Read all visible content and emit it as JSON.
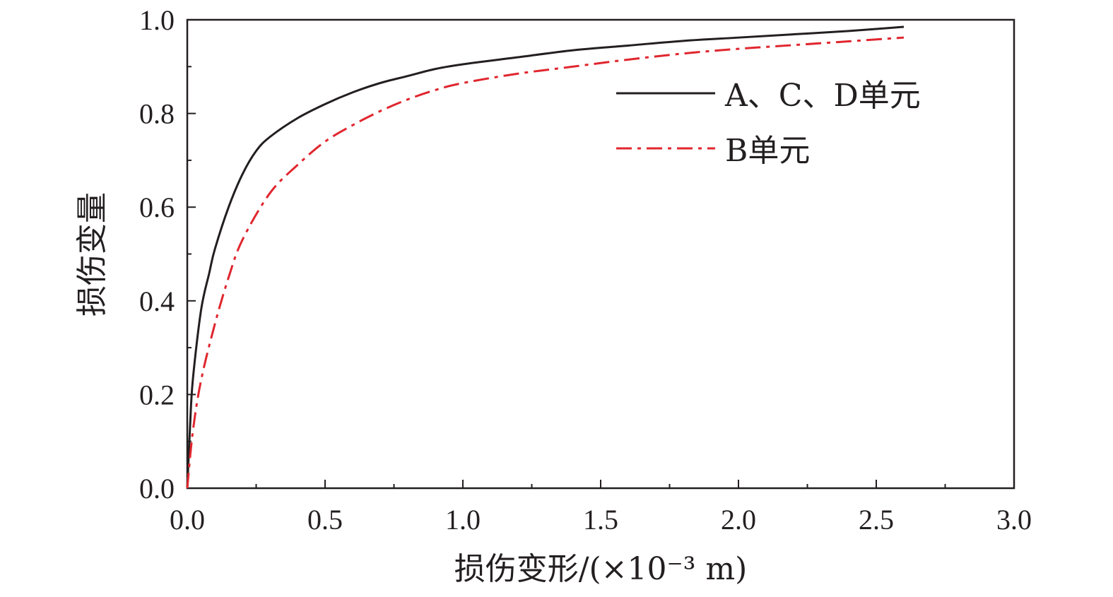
{
  "chart_data": {
    "type": "line",
    "title": "",
    "xlabel": "损伤变形/(×10⁻³ m)",
    "ylabel": "损伤变量",
    "xlim": [
      0,
      3.0
    ],
    "ylim": [
      0,
      1.0
    ],
    "x_ticks": [
      "0.0",
      "0.5",
      "1.0",
      "1.5",
      "2.0",
      "2.5",
      "3.0"
    ],
    "y_ticks": [
      "0.0",
      "0.2",
      "0.4",
      "0.6",
      "0.8",
      "1.0"
    ],
    "grid": false,
    "legend_position": "top-right",
    "series": [
      {
        "name": "A、C、D单元",
        "color": "#231f20",
        "style": "solid",
        "x": [
          0,
          0.01,
          0.02,
          0.05,
          0.08,
          0.1,
          0.15,
          0.2,
          0.25,
          0.3,
          0.4,
          0.5,
          0.6,
          0.7,
          0.8,
          0.9,
          1.0,
          1.2,
          1.4,
          1.6,
          1.8,
          2.0,
          2.2,
          2.4,
          2.6
        ],
        "y": [
          0,
          0.13,
          0.23,
          0.38,
          0.46,
          0.51,
          0.6,
          0.67,
          0.72,
          0.75,
          0.79,
          0.82,
          0.845,
          0.865,
          0.88,
          0.895,
          0.905,
          0.92,
          0.935,
          0.945,
          0.955,
          0.962,
          0.969,
          0.976,
          0.985
        ]
      },
      {
        "name": "B单元",
        "color": "#e0262e",
        "style": "dashdot",
        "x": [
          0,
          0.02,
          0.05,
          0.1,
          0.15,
          0.2,
          0.3,
          0.4,
          0.5,
          0.6,
          0.7,
          0.8,
          0.9,
          1.0,
          1.2,
          1.4,
          1.6,
          1.8,
          2.0,
          2.2,
          2.4,
          2.6
        ],
        "y": [
          0,
          0.12,
          0.23,
          0.35,
          0.45,
          0.53,
          0.63,
          0.69,
          0.74,
          0.775,
          0.805,
          0.83,
          0.85,
          0.865,
          0.885,
          0.9,
          0.915,
          0.928,
          0.938,
          0.946,
          0.954,
          0.962
        ]
      }
    ]
  }
}
